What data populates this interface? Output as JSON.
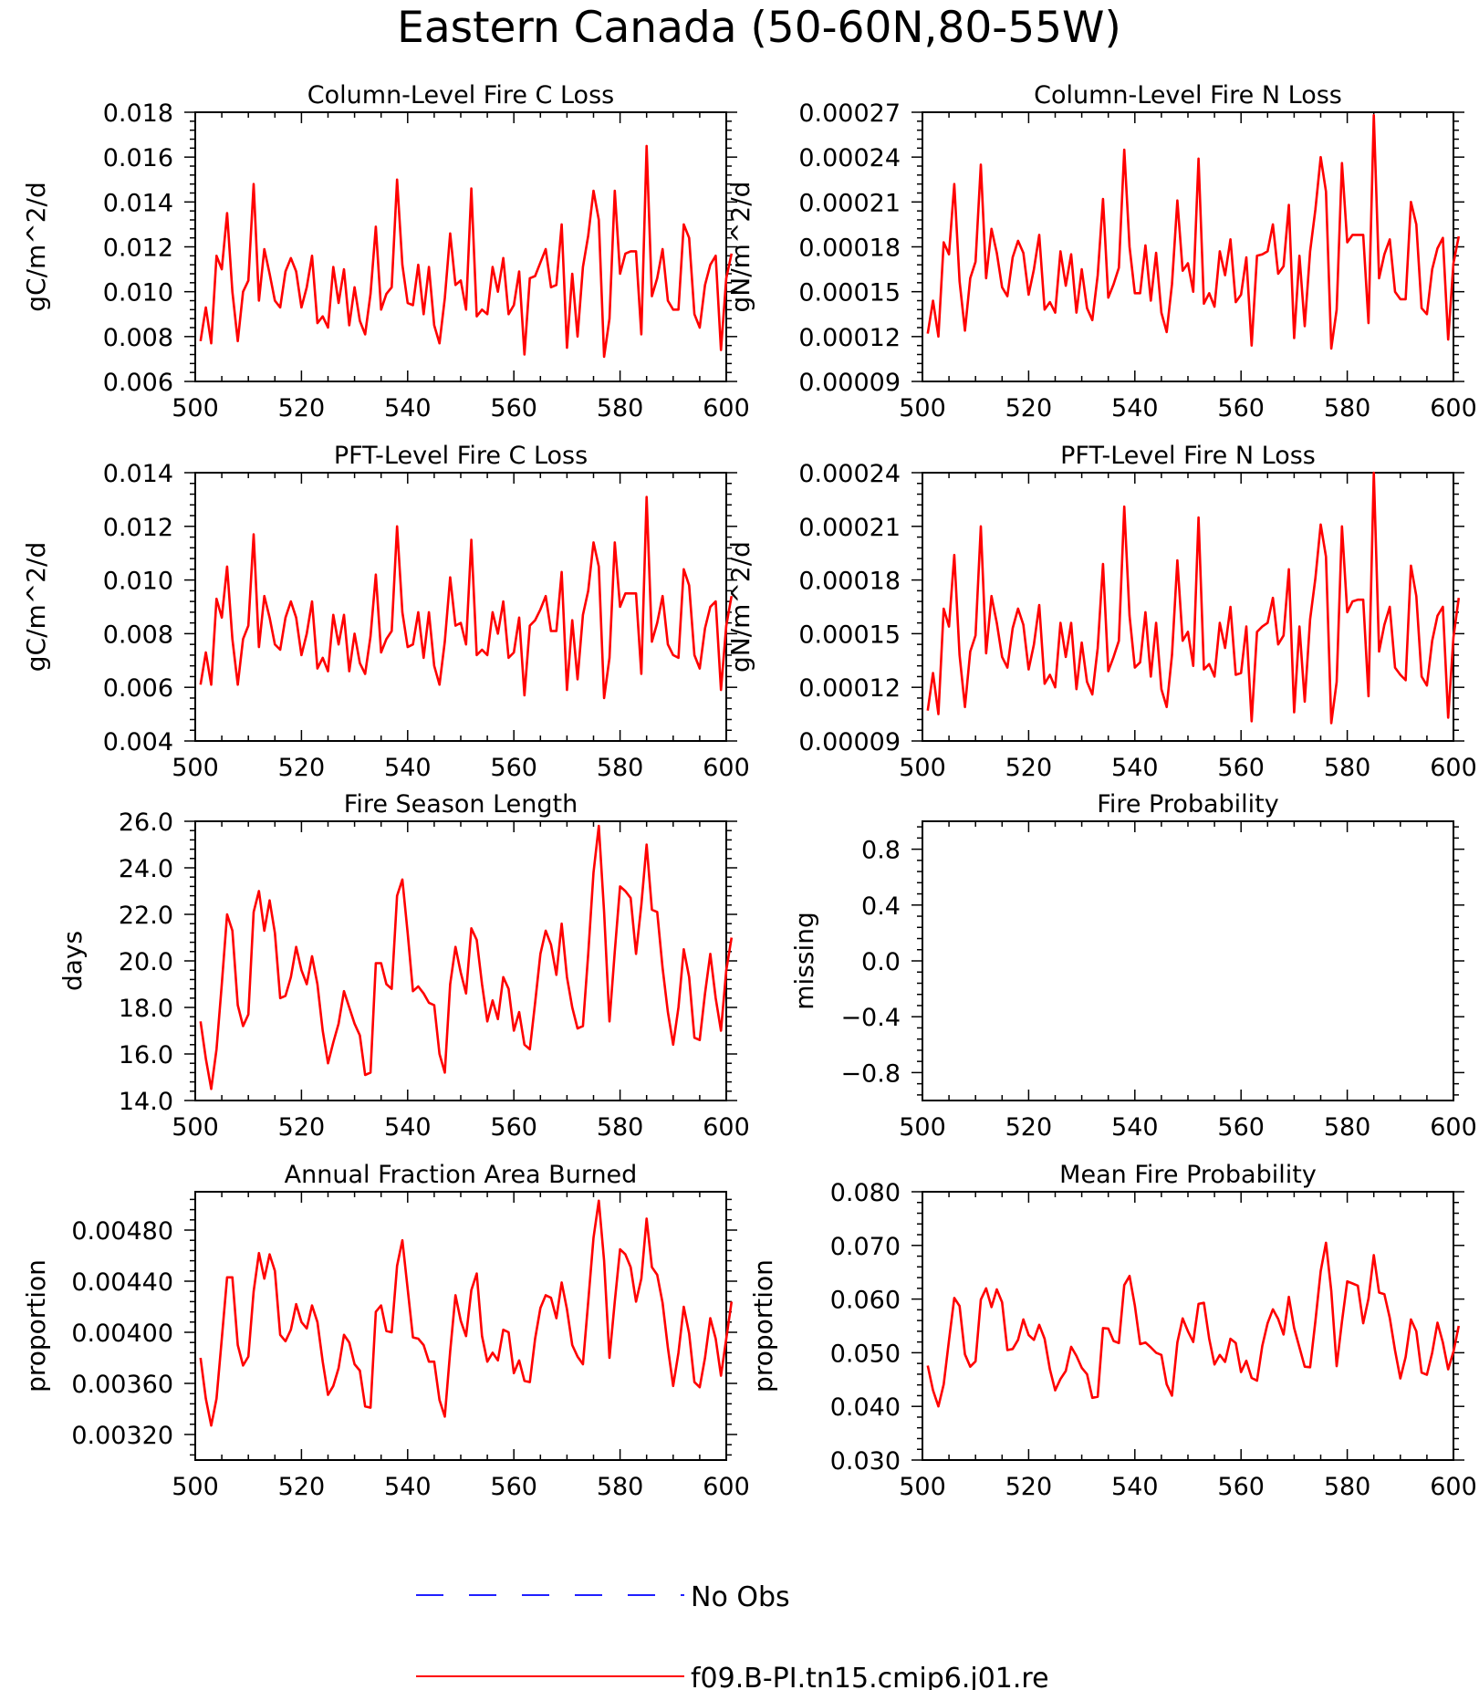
{
  "title": "Eastern Canada (50-60N,80-55W)",
  "colors": {
    "model": "#ff0000",
    "obs": "#0000ff",
    "axis": "#000000"
  },
  "legend": [
    {
      "label": "No Obs",
      "style": "dashed",
      "color": "#0000ff"
    },
    {
      "label": "f09.B-PI.tn15.cmip6.j01.re",
      "style": "solid",
      "color": "#ff0000"
    }
  ],
  "chart_data": [
    {
      "id": "col-c",
      "type": "line",
      "title": "Column-Level Fire C Loss",
      "xlabel": "",
      "ylabel": "gC/m^2/d",
      "xlim": [
        500,
        600
      ],
      "ylim": [
        0.006,
        0.018
      ],
      "xticks": [
        "500",
        "520",
        "540",
        "560",
        "580",
        "600"
      ],
      "yticks": [
        "0.006",
        "0.008",
        "0.010",
        "0.012",
        "0.014",
        "0.016",
        "0.018"
      ],
      "series": [
        {
          "x_start": 501,
          "values": [
            0.0078,
            0.0093,
            0.0077,
            0.0116,
            0.011,
            0.0135,
            0.01,
            0.0078,
            0.01,
            0.0105,
            0.0148,
            0.0096,
            0.0119,
            0.0108,
            0.0096,
            0.0093,
            0.0109,
            0.0115,
            0.0109,
            0.0093,
            0.0102,
            0.0116,
            0.0086,
            0.0089,
            0.0084,
            0.0111,
            0.0095,
            0.011,
            0.0085,
            0.0102,
            0.0087,
            0.0081,
            0.0099,
            0.0129,
            0.0092,
            0.0099,
            0.0102,
            0.015,
            0.0112,
            0.0095,
            0.0094,
            0.0112,
            0.009,
            0.0111,
            0.0085,
            0.0077,
            0.0097,
            0.0126,
            0.0103,
            0.0105,
            0.0092,
            0.0146,
            0.0089,
            0.0092,
            0.009,
            0.0111,
            0.01,
            0.0115,
            0.009,
            0.0094,
            0.0109,
            0.0072,
            0.0106,
            0.0107,
            0.0113,
            0.0119,
            0.0102,
            0.0103,
            0.013,
            0.0075,
            0.0108,
            0.008,
            0.0111,
            0.0125,
            0.0145,
            0.0132,
            0.0071,
            0.0088,
            0.0145,
            0.0108,
            0.0117,
            0.0118,
            0.0118,
            0.0081,
            0.0165,
            0.0098,
            0.0106,
            0.0119,
            0.0096,
            0.0092,
            0.0092,
            0.013,
            0.0124,
            0.009,
            0.0084,
            0.0103,
            0.0112,
            0.0116,
            0.0074,
            0.0106,
            0.0117
          ]
        }
      ]
    },
    {
      "id": "col-n",
      "type": "line",
      "title": "Column-Level Fire N Loss",
      "xlabel": "",
      "ylabel": "gN/m^2/d",
      "xlim": [
        500,
        600
      ],
      "ylim": [
        9e-05,
        0.00027
      ],
      "xticks": [
        "500",
        "520",
        "540",
        "560",
        "580",
        "600"
      ],
      "yticks": [
        "0.00009",
        "0.00012",
        "0.00015",
        "0.00018",
        "0.00021",
        "0.00024",
        "0.00027"
      ],
      "series": [
        {
          "x_start": 501,
          "values": [
            0.000122,
            0.000144,
            0.00012,
            0.000183,
            0.000175,
            0.000222,
            0.000157,
            0.000124,
            0.000159,
            0.00017,
            0.000235,
            0.000159,
            0.000192,
            0.000176,
            0.000153,
            0.000147,
            0.000173,
            0.000184,
            0.000176,
            0.000148,
            0.000165,
            0.000188,
            0.000138,
            0.000143,
            0.000136,
            0.000177,
            0.000154,
            0.000175,
            0.000136,
            0.000165,
            0.000139,
            0.000131,
            0.000161,
            0.000212,
            0.000146,
            0.000155,
            0.000166,
            0.000245,
            0.00018,
            0.000149,
            0.000149,
            0.000181,
            0.000144,
            0.000176,
            0.000136,
            0.000123,
            0.000155,
            0.000211,
            0.000164,
            0.000169,
            0.00015,
            0.000239,
            0.000142,
            0.000149,
            0.00014,
            0.000177,
            0.000161,
            0.000185,
            0.000143,
            0.000148,
            0.000173,
            0.000114,
            0.000174,
            0.000175,
            0.000177,
            0.000195,
            0.000162,
            0.000167,
            0.000208,
            0.000119,
            0.000174,
            0.000127,
            0.000177,
            0.000205,
            0.00024,
            0.000217,
            0.000112,
            0.000138,
            0.000236,
            0.000183,
            0.000188,
            0.000188,
            0.000188,
            0.000129,
            0.000268,
            0.000159,
            0.000175,
            0.000185,
            0.00015,
            0.000145,
            0.000145,
            0.00021,
            0.000195,
            0.000139,
            0.000135,
            0.000165,
            0.000179,
            0.000186,
            0.000118,
            0.000169,
            0.000187
          ]
        }
      ]
    },
    {
      "id": "pft-c",
      "type": "line",
      "title": "PFT-Level Fire C Loss",
      "xlabel": "",
      "ylabel": "gC/m^2/d",
      "xlim": [
        500,
        600
      ],
      "ylim": [
        0.004,
        0.014
      ],
      "xticks": [
        "500",
        "520",
        "540",
        "560",
        "580",
        "600"
      ],
      "yticks": [
        "0.004",
        "0.006",
        "0.008",
        "0.010",
        "0.012",
        "0.014"
      ],
      "series": [
        {
          "x_start": 501,
          "values": [
            0.0061,
            0.0073,
            0.0061,
            0.0093,
            0.0086,
            0.0105,
            0.0078,
            0.0061,
            0.0078,
            0.0083,
            0.0117,
            0.0075,
            0.0094,
            0.0086,
            0.0076,
            0.0074,
            0.0086,
            0.0092,
            0.0086,
            0.0072,
            0.008,
            0.0092,
            0.0067,
            0.0071,
            0.0066,
            0.0087,
            0.0076,
            0.0087,
            0.0066,
            0.008,
            0.0069,
            0.0065,
            0.0079,
            0.0102,
            0.0073,
            0.0078,
            0.0081,
            0.012,
            0.0088,
            0.0075,
            0.0076,
            0.0088,
            0.0071,
            0.0088,
            0.0068,
            0.0061,
            0.0077,
            0.0101,
            0.0083,
            0.0084,
            0.0076,
            0.0115,
            0.0072,
            0.0074,
            0.0072,
            0.0088,
            0.008,
            0.0092,
            0.0071,
            0.0073,
            0.0086,
            0.0057,
            0.0083,
            0.0085,
            0.0089,
            0.0094,
            0.0081,
            0.0081,
            0.0103,
            0.0059,
            0.0085,
            0.0063,
            0.0087,
            0.0096,
            0.0114,
            0.0105,
            0.0056,
            0.0071,
            0.0114,
            0.009,
            0.0095,
            0.0095,
            0.0095,
            0.0065,
            0.0131,
            0.0077,
            0.0084,
            0.0094,
            0.0076,
            0.0072,
            0.0071,
            0.0104,
            0.0098,
            0.0072,
            0.0067,
            0.0082,
            0.009,
            0.0092,
            0.0059,
            0.0083,
            0.0094
          ]
        }
      ]
    },
    {
      "id": "pft-n",
      "type": "line",
      "title": "PFT-Level Fire N Loss",
      "xlabel": "",
      "ylabel": "gN/m^2/d",
      "xlim": [
        500,
        600
      ],
      "ylim": [
        9e-05,
        0.00024
      ],
      "xticks": [
        "500",
        "520",
        "540",
        "560",
        "580",
        "600"
      ],
      "yticks": [
        "0.00009",
        "0.00012",
        "0.00015",
        "0.00018",
        "0.00021",
        "0.00024"
      ],
      "series": [
        {
          "x_start": 501,
          "values": [
            0.000107,
            0.000128,
            0.000105,
            0.000164,
            0.000154,
            0.000194,
            0.000138,
            0.000109,
            0.00014,
            0.000149,
            0.00021,
            0.000139,
            0.000171,
            0.000156,
            0.000137,
            0.000131,
            0.000153,
            0.000164,
            0.000155,
            0.00013,
            0.000144,
            0.000166,
            0.000122,
            0.000127,
            0.00012,
            0.000156,
            0.000137,
            0.000156,
            0.000119,
            0.000145,
            0.000123,
            0.000116,
            0.000142,
            0.000189,
            0.000129,
            0.000137,
            0.000146,
            0.000221,
            0.00016,
            0.000131,
            0.000134,
            0.000162,
            0.000126,
            0.000156,
            0.000119,
            0.000109,
            0.000138,
            0.000191,
            0.000146,
            0.000151,
            0.000132,
            0.000215,
            0.00013,
            0.000133,
            0.000126,
            0.000156,
            0.000142,
            0.000165,
            0.000127,
            0.000128,
            0.000154,
            0.000101,
            0.000151,
            0.000154,
            0.000156,
            0.00017,
            0.000144,
            0.000149,
            0.000186,
            0.000106,
            0.000154,
            0.000112,
            0.000158,
            0.000181,
            0.000211,
            0.000193,
            0.0001,
            0.000123,
            0.00021,
            0.000162,
            0.000168,
            0.000169,
            0.000169,
            0.000115,
            0.00024,
            0.00014,
            0.000155,
            0.000165,
            0.000131,
            0.000127,
            0.000124,
            0.000188,
            0.000171,
            0.000126,
            0.000121,
            0.000146,
            0.00016,
            0.000165,
            0.000103,
            0.000148,
            0.00017
          ]
        }
      ]
    },
    {
      "id": "season",
      "type": "line",
      "title": "Fire Season Length",
      "xlabel": "",
      "ylabel": "days",
      "xlim": [
        500,
        600
      ],
      "ylim": [
        14.0,
        26.0
      ],
      "xticks": [
        "500",
        "520",
        "540",
        "560",
        "580",
        "600"
      ],
      "yticks": [
        "14.0",
        "16.0",
        "18.0",
        "20.0",
        "22.0",
        "24.0",
        "26.0"
      ],
      "series": [
        {
          "x_start": 501,
          "values": [
            17.4,
            15.8,
            14.5,
            16.2,
            19.0,
            22.0,
            21.3,
            18.1,
            17.2,
            17.7,
            22.1,
            23.0,
            21.3,
            22.6,
            21.2,
            18.4,
            18.5,
            19.3,
            20.6,
            19.6,
            19.0,
            20.2,
            19.0,
            17.0,
            15.6,
            16.5,
            17.3,
            18.7,
            18.0,
            17.3,
            16.8,
            15.1,
            15.2,
            19.9,
            19.9,
            19.0,
            18.8,
            22.8,
            23.5,
            21.2,
            18.7,
            18.9,
            18.6,
            18.2,
            18.1,
            16.0,
            15.2,
            19.0,
            20.6,
            19.5,
            18.6,
            21.4,
            20.9,
            19.0,
            17.4,
            18.3,
            17.5,
            19.3,
            18.8,
            17.0,
            17.8,
            16.4,
            16.2,
            18.2,
            20.3,
            21.3,
            20.7,
            19.4,
            21.6,
            19.3,
            18.0,
            17.1,
            17.2,
            20.3,
            23.8,
            25.8,
            22.1,
            17.4,
            20.4,
            23.2,
            23.0,
            22.7,
            20.3,
            22.4,
            25.0,
            22.2,
            22.1,
            19.7,
            17.8,
            16.4,
            18.0,
            20.5,
            19.3,
            16.7,
            16.6,
            18.6,
            20.3,
            18.4,
            17.0,
            19.6,
            21.0
          ]
        }
      ]
    },
    {
      "id": "prob",
      "type": "line",
      "title": "Fire Probability",
      "xlabel": "",
      "ylabel": "missing",
      "xlim": [
        500,
        600
      ],
      "ylim": [
        -1.0,
        1.0
      ],
      "xticks": [
        "500",
        "520",
        "540",
        "560",
        "580",
        "600"
      ],
      "yticks": [
        "−0.8",
        "−0.4",
        "0.0",
        "0.4",
        "0.8"
      ],
      "yticks_values": [
        -0.8,
        -0.4,
        0.0,
        0.4,
        0.8
      ],
      "series": []
    },
    {
      "id": "afab",
      "type": "line",
      "title": "Annual Fraction Area Burned",
      "xlabel": "",
      "ylabel": "proportion",
      "xlim": [
        500,
        600
      ],
      "ylim": [
        0.003,
        0.0051
      ],
      "xticks": [
        "500",
        "520",
        "540",
        "560",
        "580",
        "600"
      ],
      "yticks": [
        "0.00320",
        "0.00360",
        "0.00400",
        "0.00440",
        "0.00480"
      ],
      "yticks_values": [
        0.0032,
        0.0036,
        0.004,
        0.0044,
        0.0048
      ],
      "series": [
        {
          "x_start": 501,
          "values": [
            0.0038,
            0.00348,
            0.00327,
            0.00348,
            0.00395,
            0.00443,
            0.00443,
            0.0039,
            0.00374,
            0.00381,
            0.00432,
            0.00462,
            0.00442,
            0.00461,
            0.00448,
            0.00398,
            0.00393,
            0.00402,
            0.00422,
            0.00408,
            0.00403,
            0.00421,
            0.00408,
            0.00377,
            0.00351,
            0.00358,
            0.00372,
            0.00398,
            0.00392,
            0.00375,
            0.0037,
            0.00342,
            0.00341,
            0.00416,
            0.00421,
            0.00401,
            0.004,
            0.00452,
            0.00472,
            0.00434,
            0.00396,
            0.00395,
            0.0039,
            0.00377,
            0.00377,
            0.00347,
            0.00334,
            0.00385,
            0.00429,
            0.00409,
            0.00397,
            0.00433,
            0.00446,
            0.00397,
            0.00377,
            0.00384,
            0.00378,
            0.00402,
            0.004,
            0.00368,
            0.00378,
            0.00362,
            0.00361,
            0.00395,
            0.00419,
            0.00429,
            0.00427,
            0.00411,
            0.00439,
            0.00418,
            0.0039,
            0.00381,
            0.00375,
            0.00424,
            0.00474,
            0.00503,
            0.00456,
            0.0038,
            0.00424,
            0.00465,
            0.00461,
            0.00451,
            0.00424,
            0.00442,
            0.00489,
            0.00451,
            0.00445,
            0.00423,
            0.00388,
            0.00358,
            0.00384,
            0.0042,
            0.00399,
            0.00361,
            0.00357,
            0.0038,
            0.00411,
            0.00395,
            0.00366,
            0.00395,
            0.00424
          ]
        }
      ]
    },
    {
      "id": "mfp",
      "type": "line",
      "title": "Mean Fire Probability",
      "xlabel": "",
      "ylabel": "proportion",
      "xlim": [
        500,
        600
      ],
      "ylim": [
        0.03,
        0.08
      ],
      "xticks": [
        "500",
        "520",
        "540",
        "560",
        "580",
        "600"
      ],
      "yticks": [
        "0.030",
        "0.040",
        "0.050",
        "0.060",
        "0.070",
        "0.080"
      ],
      "series": [
        {
          "x_start": 501,
          "values": [
            0.0476,
            0.043,
            0.04,
            0.0441,
            0.0523,
            0.0602,
            0.0587,
            0.0497,
            0.0474,
            0.0484,
            0.0599,
            0.062,
            0.0585,
            0.0618,
            0.0594,
            0.0505,
            0.0507,
            0.0524,
            0.0562,
            0.0533,
            0.0524,
            0.0552,
            0.0526,
            0.0469,
            0.043,
            0.0451,
            0.0466,
            0.0511,
            0.0494,
            0.0472,
            0.046,
            0.0416,
            0.0418,
            0.0546,
            0.0545,
            0.0522,
            0.0518,
            0.0626,
            0.0643,
            0.0588,
            0.0516,
            0.0519,
            0.051,
            0.05,
            0.0496,
            0.0441,
            0.042,
            0.0519,
            0.0564,
            0.054,
            0.052,
            0.0591,
            0.0593,
            0.0526,
            0.0478,
            0.0496,
            0.0483,
            0.0526,
            0.0518,
            0.0464,
            0.0485,
            0.0453,
            0.0448,
            0.0513,
            0.0555,
            0.0581,
            0.0563,
            0.0534,
            0.0604,
            0.0546,
            0.051,
            0.0474,
            0.0473,
            0.0559,
            0.0652,
            0.0705,
            0.0615,
            0.0475,
            0.0558,
            0.0633,
            0.0629,
            0.0625,
            0.0555,
            0.0601,
            0.0682,
            0.0612,
            0.0609,
            0.0565,
            0.0504,
            0.0452,
            0.0492,
            0.0562,
            0.054,
            0.0463,
            0.0459,
            0.05,
            0.0556,
            0.0519,
            0.0469,
            0.0502,
            0.055
          ]
        }
      ]
    }
  ]
}
